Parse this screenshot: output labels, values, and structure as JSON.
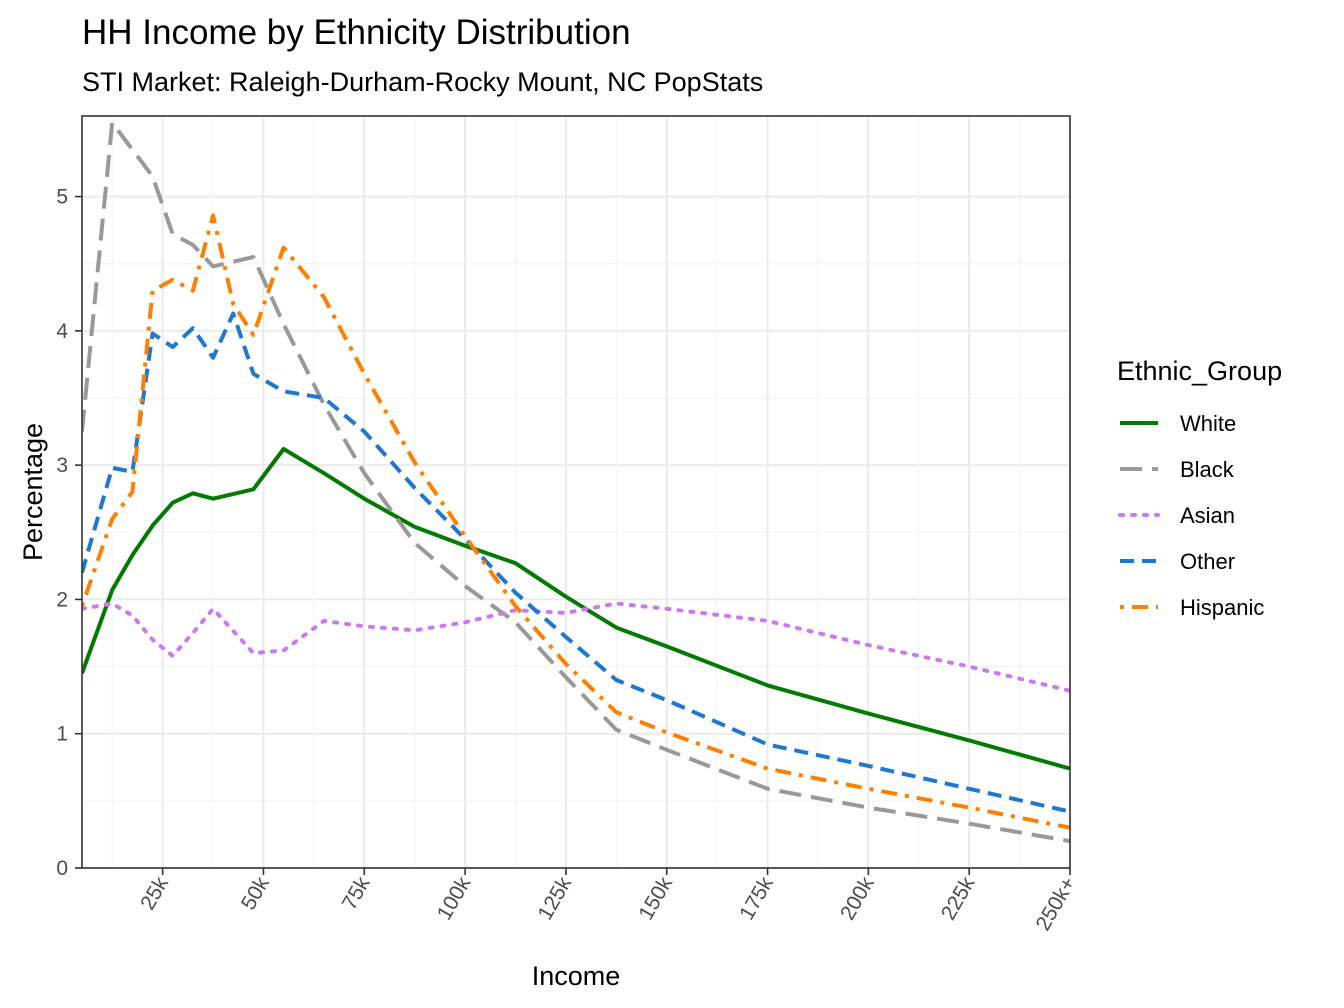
{
  "chart_data": {
    "type": "line",
    "title": "HH Income by Ethnicity Distribution",
    "subtitle": "STI Market: Raleigh-Durham-Rocky Mount, NC PopStats",
    "xlabel": "Income",
    "ylabel": "Percentage",
    "xlim": [
      5,
      250
    ],
    "ylim": [
      0,
      5.6
    ],
    "x_ticks": [
      {
        "value": 25,
        "label": "25k"
      },
      {
        "value": 50,
        "label": "50k"
      },
      {
        "value": 75,
        "label": "75k"
      },
      {
        "value": 100,
        "label": "100k"
      },
      {
        "value": 125,
        "label": "125k"
      },
      {
        "value": 150,
        "label": "150k"
      },
      {
        "value": 175,
        "label": "175k"
      },
      {
        "value": 200,
        "label": "200k"
      },
      {
        "value": 225,
        "label": "225k"
      },
      {
        "value": 250,
        "label": "250k+"
      }
    ],
    "y_ticks": [
      0,
      1,
      2,
      3,
      4,
      5
    ],
    "grid": true,
    "legend": {
      "title": "Ethnic_Group",
      "position": "right"
    },
    "series": [
      {
        "name": "White",
        "color": "#007a00",
        "dash": "solid",
        "x": [
          5,
          12.5,
          17.5,
          22.5,
          27.5,
          32.5,
          37.5,
          47.5,
          55,
          65,
          75,
          87.5,
          100,
          112.5,
          125,
          137.5,
          150,
          175,
          200,
          225,
          250
        ],
        "y": [
          1.45,
          2.07,
          2.33,
          2.55,
          2.72,
          2.79,
          2.75,
          2.82,
          3.12,
          2.94,
          2.75,
          2.54,
          2.4,
          2.27,
          2.02,
          1.79,
          1.65,
          1.36,
          1.15,
          0.95,
          0.74
        ]
      },
      {
        "name": "Black",
        "color": "#999999",
        "dash": "longdash",
        "x": [
          5,
          12.5,
          17.5,
          22.5,
          27.5,
          32.5,
          37.5,
          47.5,
          55,
          65,
          75,
          87.5,
          100,
          112.5,
          125,
          137.5,
          150,
          175,
          200,
          225,
          250
        ],
        "y": [
          3.25,
          5.55,
          5.35,
          5.15,
          4.72,
          4.64,
          4.48,
          4.55,
          4.05,
          3.45,
          2.94,
          2.42,
          2.1,
          1.83,
          1.42,
          1.03,
          0.88,
          0.59,
          0.45,
          0.33,
          0.2
        ]
      },
      {
        "name": "Asian",
        "color": "#cc79f0",
        "dash": "dotted",
        "x": [
          5,
          12.5,
          17.5,
          22.5,
          27.5,
          32.5,
          37.5,
          47.5,
          55,
          65,
          75,
          87.5,
          100,
          112.5,
          125,
          137.5,
          150,
          175,
          200,
          225,
          250
        ],
        "y": [
          1.93,
          1.97,
          1.88,
          1.7,
          1.58,
          1.75,
          1.93,
          1.6,
          1.62,
          1.84,
          1.8,
          1.77,
          1.83,
          1.92,
          1.9,
          1.97,
          1.93,
          1.84,
          1.66,
          1.5,
          1.32
        ]
      },
      {
        "name": "Other",
        "color": "#1f77d0",
        "dash": "dashed",
        "x": [
          5,
          12.5,
          17.5,
          22.5,
          27.5,
          32.5,
          37.5,
          42.5,
          47.5,
          55,
          65,
          75,
          87.5,
          100,
          112.5,
          125,
          137.5,
          150,
          175,
          200,
          225,
          250
        ],
        "y": [
          2.2,
          2.98,
          2.95,
          3.98,
          3.88,
          4.02,
          3.8,
          4.13,
          3.68,
          3.55,
          3.5,
          3.25,
          2.83,
          2.45,
          2.05,
          1.72,
          1.4,
          1.25,
          0.92,
          0.76,
          0.59,
          0.42
        ]
      },
      {
        "name": "Hispanic",
        "color": "#ff8000",
        "dash": "dotdash",
        "x": [
          5,
          12.5,
          17.5,
          22.5,
          27.5,
          32.5,
          37.5,
          42.5,
          47.5,
          55,
          65,
          75,
          87.5,
          100,
          112.5,
          125,
          137.5,
          150,
          175,
          200,
          225,
          250
        ],
        "y": [
          1.95,
          2.6,
          2.8,
          4.3,
          4.38,
          4.3,
          4.86,
          4.2,
          3.97,
          4.62,
          4.25,
          3.68,
          3.02,
          2.47,
          1.95,
          1.52,
          1.16,
          1.01,
          0.74,
          0.59,
          0.45,
          0.3
        ]
      }
    ]
  }
}
